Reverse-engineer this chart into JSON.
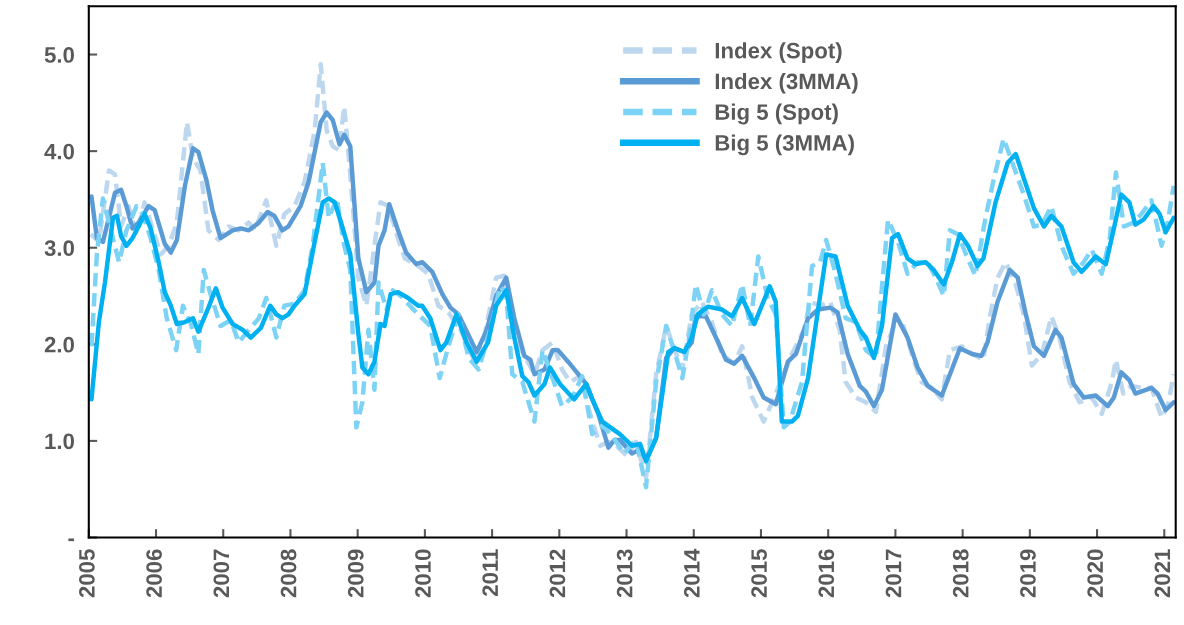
{
  "chart_data": {
    "type": "line",
    "xlim": [
      2005,
      2021.17
    ],
    "xticks": [
      2005,
      2006,
      2007,
      2008,
      2009,
      2010,
      2011,
      2012,
      2013,
      2014,
      2015,
      2016,
      2017,
      2018,
      2019,
      2020,
      2021
    ],
    "ylim": [
      0,
      5.5
    ],
    "yticks": [
      {
        "value": 0,
        "label": "-"
      },
      {
        "value": 1,
        "label": "1.0"
      },
      {
        "value": 2,
        "label": "2.0"
      },
      {
        "value": 3,
        "label": "3.0"
      },
      {
        "value": 4,
        "label": "4.0"
      },
      {
        "value": 5,
        "label": "5.0"
      }
    ],
    "grid": false,
    "legend": "top",
    "marker": "none",
    "series": [
      {
        "name": "Index (Spot)",
        "color": "#bdd7ee",
        "line_style": "dashed",
        "x": [
          2005.03,
          2005.15,
          2005.3,
          2005.39,
          2005.48,
          2005.59,
          2005.71,
          2005.83,
          2005.95,
          2006.07,
          2006.19,
          2006.31,
          2006.46,
          2006.55,
          2006.66,
          2006.78,
          2006.93,
          2007.08,
          2007.23,
          2007.38,
          2007.47,
          2007.64,
          2007.79,
          2007.91,
          2008.06,
          2008.21,
          2008.36,
          2008.45,
          2008.54,
          2008.63,
          2008.72,
          2008.8,
          2008.89,
          2009.01,
          2009.13,
          2009.25,
          2009.34,
          2009.46,
          2009.58,
          2009.7,
          2009.9,
          2010.05,
          2010.2,
          2010.35,
          2010.53,
          2010.74,
          2010.88,
          2011.06,
          2011.18,
          2011.33,
          2011.45,
          2011.63,
          2011.75,
          2011.9,
          2012.04,
          2012.16,
          2012.31,
          2012.49,
          2012.61,
          2012.73,
          2012.85,
          2013.0,
          2013.14,
          2013.29,
          2013.44,
          2013.59,
          2013.71,
          2013.83,
          2013.97,
          2014.12,
          2014.27,
          2014.42,
          2014.6,
          2014.72,
          2014.87,
          2015.04,
          2015.22,
          2015.46,
          2015.64,
          2015.73,
          2015.88,
          2016.03,
          2016.17,
          2016.26,
          2016.41,
          2016.56,
          2016.71,
          2016.86,
          2016.98,
          2017.12,
          2017.27,
          2017.39,
          2017.54,
          2017.69,
          2017.81,
          2017.99,
          2018.14,
          2018.31,
          2018.4,
          2018.52,
          2018.64,
          2018.79,
          2018.91,
          2019.03,
          2019.18,
          2019.32,
          2019.44,
          2019.59,
          2019.74,
          2019.92,
          2020.07,
          2020.22,
          2020.28,
          2020.39,
          2020.51,
          2020.66,
          2020.81,
          2020.96,
          2021.05,
          2021.14
        ],
        "values": [
          3.14,
          3.06,
          3.8,
          3.76,
          3.22,
          3.43,
          3.14,
          3.47,
          3.2,
          2.93,
          3.02,
          3.26,
          4.3,
          3.93,
          3.8,
          3.18,
          3.08,
          3.22,
          3.18,
          3.26,
          3.18,
          3.49,
          3.02,
          3.35,
          3.43,
          3.68,
          4.21,
          4.9,
          4.21,
          4.05,
          4.01,
          4.46,
          3.76,
          2.69,
          2.4,
          3.02,
          3.47,
          3.43,
          3.14,
          2.89,
          2.81,
          2.73,
          2.4,
          2.33,
          2.15,
          1.82,
          2.07,
          2.69,
          2.71,
          2.07,
          1.92,
          1.69,
          1.94,
          2.02,
          1.74,
          1.61,
          1.67,
          1.2,
          0.95,
          0.99,
          0.95,
          0.85,
          0.99,
          0.62,
          1.69,
          2.19,
          1.96,
          1.74,
          2.31,
          2.44,
          2.23,
          1.9,
          1.8,
          1.98,
          1.45,
          1.2,
          1.49,
          1.9,
          2.15,
          2.44,
          2.4,
          2.44,
          2.15,
          1.61,
          1.45,
          1.4,
          1.3,
          1.98,
          2.19,
          2.19,
          1.84,
          1.61,
          1.55,
          1.43,
          1.94,
          1.98,
          1.9,
          1.84,
          2.27,
          2.69,
          2.85,
          2.62,
          2.31,
          1.78,
          1.9,
          2.29,
          2.07,
          1.61,
          1.4,
          1.45,
          1.28,
          1.61,
          1.84,
          1.49,
          1.57,
          1.55,
          1.55,
          1.24,
          1.36,
          1.69
        ]
      },
      {
        "name": "Index (3MMA)",
        "color": "#5b9bd5",
        "line_style": "solid",
        "x": [
          2005.04,
          2005.12,
          2005.21,
          2005.39,
          2005.48,
          2005.56,
          2005.65,
          2005.74,
          2005.89,
          2005.98,
          2006.13,
          2006.22,
          2006.31,
          2006.43,
          2006.55,
          2006.63,
          2006.75,
          2006.84,
          2006.96,
          2007.14,
          2007.26,
          2007.38,
          2007.53,
          2007.66,
          2007.76,
          2007.88,
          2007.97,
          2008.15,
          2008.27,
          2008.45,
          2008.54,
          2008.63,
          2008.73,
          2008.8,
          2008.89,
          2009.01,
          2009.13,
          2009.25,
          2009.31,
          2009.4,
          2009.47,
          2009.6,
          2009.72,
          2009.87,
          2009.96,
          2010.11,
          2010.26,
          2010.38,
          2010.5,
          2010.77,
          2010.91,
          2011.06,
          2011.21,
          2011.33,
          2011.48,
          2011.57,
          2011.63,
          2011.78,
          2011.9,
          2011.98,
          2012.13,
          2012.4,
          2012.58,
          2012.73,
          2012.82,
          2012.9,
          2013.08,
          2013.2,
          2013.29,
          2013.44,
          2013.59,
          2013.71,
          2013.86,
          2013.97,
          2014.03,
          2014.18,
          2014.33,
          2014.48,
          2014.6,
          2014.72,
          2014.9,
          2015.04,
          2015.22,
          2015.4,
          2015.52,
          2015.7,
          2015.85,
          2016.03,
          2016.14,
          2016.29,
          2016.47,
          2016.56,
          2016.68,
          2016.8,
          2017.0,
          2017.18,
          2017.33,
          2017.48,
          2017.69,
          2017.96,
          2018.14,
          2018.28,
          2018.37,
          2018.52,
          2018.7,
          2018.82,
          2018.94,
          2019.06,
          2019.21,
          2019.38,
          2019.47,
          2019.65,
          2019.8,
          2019.98,
          2020.16,
          2020.25,
          2020.36,
          2020.48,
          2020.57,
          2020.81,
          2020.9,
          2021.02,
          2021.14
        ],
        "values": [
          3.53,
          3.1,
          3.06,
          3.57,
          3.6,
          3.43,
          3.2,
          3.26,
          3.43,
          3.39,
          3.04,
          2.95,
          3.08,
          3.64,
          4.03,
          3.99,
          3.7,
          3.39,
          3.1,
          3.18,
          3.2,
          3.18,
          3.26,
          3.37,
          3.33,
          3.18,
          3.22,
          3.43,
          3.68,
          4.3,
          4.4,
          4.32,
          4.07,
          4.17,
          4.05,
          2.89,
          2.54,
          2.64,
          3.02,
          3.18,
          3.45,
          3.18,
          2.95,
          2.83,
          2.85,
          2.75,
          2.52,
          2.38,
          2.31,
          1.92,
          2.13,
          2.5,
          2.69,
          2.27,
          1.88,
          1.84,
          1.69,
          1.74,
          1.94,
          1.94,
          1.82,
          1.59,
          1.28,
          0.93,
          1.01,
          1.01,
          0.87,
          0.91,
          0.81,
          1.03,
          1.86,
          1.96,
          1.92,
          2.02,
          2.29,
          2.29,
          2.07,
          1.84,
          1.8,
          1.88,
          1.65,
          1.45,
          1.38,
          1.82,
          1.9,
          2.27,
          2.36,
          2.38,
          2.33,
          1.9,
          1.57,
          1.51,
          1.36,
          1.53,
          2.31,
          2.07,
          1.76,
          1.57,
          1.47,
          1.96,
          1.9,
          1.88,
          2.02,
          2.44,
          2.77,
          2.69,
          2.31,
          1.98,
          1.88,
          2.15,
          2.07,
          1.59,
          1.45,
          1.47,
          1.36,
          1.45,
          1.71,
          1.63,
          1.49,
          1.55,
          1.49,
          1.32,
          1.4
        ]
      },
      {
        "name": "Big 5 (Spot)",
        "color": "#7dd3f5",
        "line_style": "dashed",
        "x": [
          2005.04,
          2005.12,
          2005.21,
          2005.3,
          2005.45,
          2005.56,
          2005.71,
          2005.8,
          2005.92,
          2006.04,
          2006.16,
          2006.3,
          2006.4,
          2006.52,
          2006.63,
          2006.71,
          2006.81,
          2006.96,
          2007.11,
          2007.23,
          2007.38,
          2007.53,
          2007.64,
          2007.79,
          2007.91,
          2008.06,
          2008.21,
          2008.33,
          2008.48,
          2008.57,
          2008.69,
          2008.8,
          2008.89,
          2008.98,
          2009.07,
          2009.16,
          2009.25,
          2009.31,
          2009.43,
          2009.52,
          2009.64,
          2009.9,
          2010.08,
          2010.22,
          2010.35,
          2010.5,
          2010.65,
          2010.8,
          2010.97,
          2011.12,
          2011.21,
          2011.3,
          2011.45,
          2011.63,
          2011.75,
          2011.9,
          2012.04,
          2012.19,
          2012.34,
          2012.49,
          2012.64,
          2012.79,
          2012.96,
          2013.14,
          2013.29,
          2013.44,
          2013.59,
          2013.74,
          2013.83,
          2013.95,
          2014.03,
          2014.15,
          2014.27,
          2014.42,
          2014.57,
          2014.72,
          2014.84,
          2014.96,
          2015.1,
          2015.22,
          2015.34,
          2015.43,
          2015.61,
          2015.76,
          2015.88,
          2015.97,
          2016.11,
          2016.26,
          2016.41,
          2016.56,
          2016.71,
          2016.8,
          2016.89,
          2017.04,
          2017.18,
          2017.33,
          2017.48,
          2017.6,
          2017.72,
          2017.81,
          2017.93,
          2018.05,
          2018.19,
          2018.34,
          2018.46,
          2018.61,
          2018.76,
          2018.91,
          2019.06,
          2019.18,
          2019.32,
          2019.47,
          2019.65,
          2019.8,
          2019.92,
          2020.07,
          2020.19,
          2020.28,
          2020.4,
          2020.54,
          2020.66,
          2020.81,
          2020.96,
          2021.05,
          2021.14
        ],
        "values": [
          1.98,
          2.93,
          3.51,
          3.26,
          2.85,
          3.18,
          3.43,
          3.35,
          3.1,
          2.77,
          2.27,
          1.94,
          2.4,
          2.21,
          1.9,
          2.77,
          2.52,
          2.19,
          2.25,
          2.02,
          2.15,
          2.27,
          2.48,
          2.07,
          2.4,
          2.42,
          2.56,
          3.02,
          3.88,
          3.31,
          3.51,
          3.02,
          2.77,
          1.14,
          1.4,
          2.15,
          1.53,
          2.64,
          2.36,
          2.56,
          2.5,
          2.31,
          2.19,
          1.65,
          1.98,
          2.31,
          1.86,
          1.74,
          2.15,
          2.6,
          2.52,
          1.69,
          1.61,
          1.2,
          1.94,
          1.65,
          1.36,
          1.45,
          1.67,
          1.07,
          1.16,
          1.05,
          0.87,
          1.01,
          0.52,
          1.61,
          2.19,
          1.86,
          1.65,
          2.15,
          2.62,
          2.31,
          2.56,
          2.31,
          2.19,
          2.62,
          2.19,
          2.91,
          2.48,
          2.31,
          1.14,
          1.2,
          1.61,
          2.81,
          2.85,
          3.08,
          2.73,
          2.27,
          2.23,
          1.94,
          1.86,
          2.6,
          3.29,
          3.06,
          2.73,
          2.85,
          2.85,
          2.69,
          2.5,
          3.18,
          3.14,
          2.93,
          2.71,
          3.31,
          3.7,
          4.13,
          3.84,
          3.55,
          3.22,
          3.24,
          3.43,
          3.02,
          2.73,
          2.85,
          2.98,
          2.73,
          3.1,
          3.78,
          3.22,
          3.26,
          3.35,
          3.49,
          3.02,
          3.26,
          3.64
        ]
      },
      {
        "name": "Big 5 (3MMA)",
        "color": "#00b0f0",
        "line_style": "solid",
        "x": [
          2005.04,
          2005.15,
          2005.24,
          2005.36,
          2005.42,
          2005.48,
          2005.56,
          2005.65,
          2005.74,
          2005.83,
          2005.92,
          2006.04,
          2006.13,
          2006.22,
          2006.31,
          2006.43,
          2006.55,
          2006.63,
          2006.78,
          2006.89,
          2006.99,
          2007.14,
          2007.29,
          2007.41,
          2007.56,
          2007.7,
          2007.79,
          2007.88,
          2007.97,
          2008.06,
          2008.21,
          2008.36,
          2008.48,
          2008.57,
          2008.66,
          2008.77,
          2008.89,
          2009.01,
          2009.07,
          2009.16,
          2009.25,
          2009.34,
          2009.4,
          2009.49,
          2009.6,
          2009.75,
          2009.9,
          2009.96,
          2010.08,
          2010.23,
          2010.32,
          2010.47,
          2010.62,
          2010.77,
          2010.94,
          2011.06,
          2011.21,
          2011.33,
          2011.45,
          2011.54,
          2011.63,
          2011.78,
          2011.86,
          2012.01,
          2012.22,
          2012.4,
          2012.49,
          2012.64,
          2012.76,
          2012.9,
          2013.08,
          2013.2,
          2013.29,
          2013.44,
          2013.62,
          2013.71,
          2013.86,
          2013.97,
          2014.06,
          2014.21,
          2014.42,
          2014.57,
          2014.72,
          2014.9,
          2015.13,
          2015.22,
          2015.31,
          2015.46,
          2015.55,
          2015.7,
          2015.85,
          2015.97,
          2016.11,
          2016.29,
          2016.47,
          2016.56,
          2016.68,
          2016.8,
          2016.95,
          2017.04,
          2017.18,
          2017.3,
          2017.45,
          2017.57,
          2017.72,
          2017.84,
          2017.96,
          2018.08,
          2018.22,
          2018.31,
          2018.49,
          2018.67,
          2018.79,
          2018.91,
          2019.06,
          2019.21,
          2019.32,
          2019.47,
          2019.65,
          2019.77,
          2019.98,
          2020.13,
          2020.25,
          2020.36,
          2020.48,
          2020.57,
          2020.69,
          2020.84,
          2020.93,
          2021.02,
          2021.14
        ],
        "values": [
          1.43,
          2.23,
          2.64,
          3.31,
          3.33,
          3.12,
          3.02,
          3.1,
          3.22,
          3.35,
          3.2,
          2.85,
          2.54,
          2.4,
          2.21,
          2.23,
          2.27,
          2.13,
          2.38,
          2.58,
          2.38,
          2.21,
          2.15,
          2.07,
          2.17,
          2.4,
          2.31,
          2.27,
          2.31,
          2.4,
          2.52,
          3.06,
          3.47,
          3.51,
          3.47,
          3.22,
          2.93,
          2.11,
          1.76,
          1.69,
          1.82,
          2.21,
          2.19,
          2.52,
          2.54,
          2.48,
          2.4,
          2.4,
          2.27,
          1.94,
          2.02,
          2.31,
          2.02,
          1.82,
          2.02,
          2.4,
          2.56,
          2.07,
          1.67,
          1.61,
          1.47,
          1.59,
          1.76,
          1.59,
          1.43,
          1.59,
          1.43,
          1.2,
          1.14,
          1.07,
          0.95,
          0.97,
          0.79,
          1.03,
          1.92,
          1.96,
          1.92,
          2.07,
          2.31,
          2.39,
          2.36,
          2.29,
          2.48,
          2.21,
          2.6,
          2.44,
          1.2,
          1.2,
          1.26,
          1.65,
          2.36,
          2.93,
          2.91,
          2.4,
          2.15,
          2.07,
          1.86,
          2.19,
          3.1,
          3.14,
          2.89,
          2.83,
          2.85,
          2.77,
          2.62,
          2.85,
          3.14,
          3.02,
          2.81,
          2.89,
          3.47,
          3.88,
          3.97,
          3.72,
          3.41,
          3.22,
          3.33,
          3.22,
          2.85,
          2.75,
          2.91,
          2.83,
          3.2,
          3.55,
          3.47,
          3.24,
          3.29,
          3.43,
          3.35,
          3.16,
          3.31
        ]
      }
    ]
  }
}
